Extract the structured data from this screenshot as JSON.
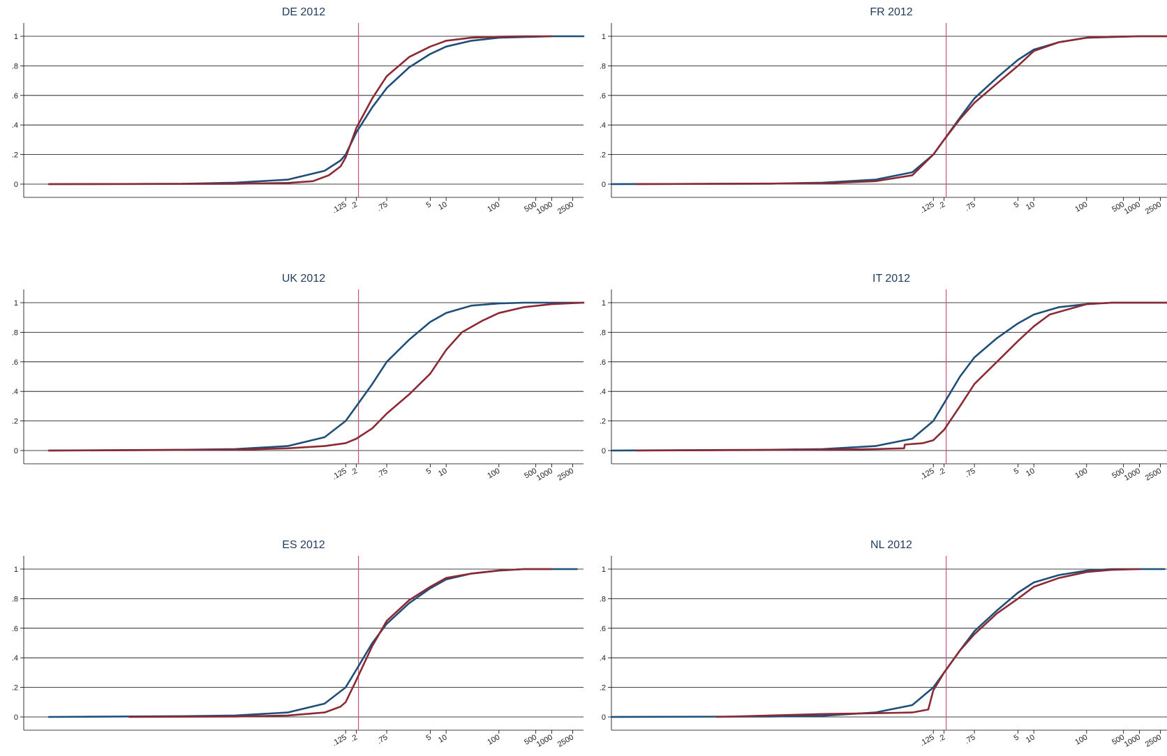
{
  "colors": {
    "series_a": "#1f4e79",
    "series_b": "#8b2a34",
    "vline": "#c8567a",
    "grid": "#000000"
  },
  "chart_data": [
    {
      "type": "line",
      "title": "DE 2012",
      "x_scale": "log",
      "x_ticks": [
        ".125",
        ".2",
        ".75",
        "5",
        "10",
        "100",
        "500",
        "1000",
        "2500"
      ],
      "y_ticks": [
        "0",
        ".2",
        ".4",
        ".6",
        ".8",
        "1"
      ],
      "ylim": [
        0,
        1
      ],
      "grid": true,
      "vline_x": 0.125,
      "series": [
        {
          "x": [
            3e-07,
            0.0001,
            0.001,
            0.01,
            0.05,
            0.1,
            0.125,
            0.2,
            0.4,
            0.75,
            2,
            5,
            10,
            30,
            100,
            300,
            1000,
            4000
          ],
          "y": [
            0,
            0.002,
            0.01,
            0.03,
            0.09,
            0.16,
            0.2,
            0.35,
            0.52,
            0.65,
            0.79,
            0.88,
            0.93,
            0.97,
            0.99,
            0.995,
            1,
            1
          ]
        },
        {
          "x": [
            3e-07,
            0.001,
            0.01,
            0.03,
            0.06,
            0.1,
            0.125,
            0.2,
            0.4,
            0.75,
            2,
            5,
            10,
            30,
            100,
            300,
            1000
          ],
          "y": [
            0,
            0.002,
            0.008,
            0.02,
            0.06,
            0.12,
            0.18,
            0.38,
            0.58,
            0.73,
            0.86,
            0.93,
            0.97,
            0.99,
            0.997,
            1,
            1
          ]
        }
      ]
    },
    {
      "type": "line",
      "title": "FR 2012",
      "x_scale": "log",
      "x_ticks": [
        ".125",
        ".2",
        ".75",
        "5",
        "10",
        "100",
        "500",
        "1000",
        "2500"
      ],
      "y_ticks": [
        "0",
        ".2",
        ".4",
        ".6",
        ".8",
        "1"
      ],
      "ylim": [
        0,
        1
      ],
      "grid": true,
      "vline_x": 0.125,
      "series": [
        {
          "x": [
            1e-07,
            0.0001,
            0.001,
            0.01,
            0.05,
            0.125,
            0.2,
            0.4,
            0.75,
            2,
            5,
            10,
            30,
            100,
            300,
            1000,
            4000
          ],
          "y": [
            0,
            0.003,
            0.01,
            0.03,
            0.08,
            0.2,
            0.3,
            0.45,
            0.58,
            0.72,
            0.84,
            0.91,
            0.96,
            0.99,
            0.995,
            1,
            1
          ]
        },
        {
          "x": [
            3e-07,
            0.001,
            0.01,
            0.05,
            0.125,
            0.2,
            0.4,
            0.75,
            2,
            5,
            10,
            30,
            100,
            300,
            1000,
            4000
          ],
          "y": [
            0,
            0.005,
            0.02,
            0.06,
            0.2,
            0.3,
            0.44,
            0.55,
            0.68,
            0.8,
            0.9,
            0.96,
            0.99,
            0.997,
            1,
            1
          ]
        }
      ]
    },
    {
      "type": "line",
      "title": "UK 2012",
      "x_scale": "log",
      "x_ticks": [
        ".125",
        ".2",
        ".75",
        "5",
        "10",
        "100",
        "500",
        "1000",
        "2500"
      ],
      "y_ticks": [
        "0",
        ".2",
        ".4",
        ".6",
        ".8",
        "1"
      ],
      "ylim": [
        0,
        1
      ],
      "grid": true,
      "vline_x": 0.125,
      "series": [
        {
          "x": [
            3e-07,
            0.0001,
            0.001,
            0.01,
            0.05,
            0.125,
            0.2,
            0.4,
            0.75,
            2,
            5,
            10,
            30,
            100,
            300,
            1000,
            4000
          ],
          "y": [
            0,
            0.005,
            0.01,
            0.03,
            0.09,
            0.2,
            0.3,
            0.45,
            0.6,
            0.75,
            0.87,
            0.93,
            0.98,
            0.995,
            1,
            1,
            1
          ]
        },
        {
          "x": [
            3e-07,
            0.001,
            0.01,
            0.05,
            0.125,
            0.2,
            0.4,
            0.75,
            2,
            5,
            10,
            20,
            50,
            100,
            300,
            1000,
            4000
          ],
          "y": [
            0,
            0.005,
            0.015,
            0.03,
            0.05,
            0.08,
            0.15,
            0.25,
            0.38,
            0.52,
            0.68,
            0.8,
            0.88,
            0.93,
            0.97,
            0.99,
            1
          ]
        }
      ]
    },
    {
      "type": "line",
      "title": "IT 2012",
      "x_scale": "log",
      "x_ticks": [
        ".125",
        ".2",
        ".75",
        "5",
        "10",
        "100",
        "500",
        "1000",
        "2500"
      ],
      "y_ticks": [
        "0",
        ".2",
        ".4",
        ".6",
        ".8",
        "1"
      ],
      "ylim": [
        0,
        1
      ],
      "grid": true,
      "vline_x": 0.125,
      "series": [
        {
          "x": [
            1e-07,
            0.0001,
            0.001,
            0.01,
            0.05,
            0.125,
            0.2,
            0.4,
            0.75,
            2,
            5,
            10,
            30,
            100,
            300,
            1000,
            4000
          ],
          "y": [
            0,
            0.005,
            0.01,
            0.03,
            0.08,
            0.2,
            0.32,
            0.5,
            0.63,
            0.76,
            0.86,
            0.92,
            0.97,
            0.99,
            1,
            1,
            1
          ]
        },
        {
          "x": [
            3e-07,
            0.001,
            0.01,
            0.035,
            0.036,
            0.08,
            0.125,
            0.2,
            0.4,
            0.75,
            2,
            5,
            10,
            20,
            50,
            100,
            300,
            1000,
            4000
          ],
          "y": [
            0,
            0.005,
            0.01,
            0.015,
            0.04,
            0.05,
            0.07,
            0.14,
            0.3,
            0.45,
            0.6,
            0.74,
            0.84,
            0.92,
            0.96,
            0.99,
            1,
            1,
            1
          ]
        }
      ]
    },
    {
      "type": "line",
      "title": "ES 2012",
      "x_scale": "log",
      "x_ticks": [
        ".125",
        ".2",
        ".75",
        "5",
        "10",
        "100",
        "500",
        "1000",
        "2500"
      ],
      "y_ticks": [
        "0",
        ".2",
        ".4",
        ".6",
        ".8",
        "1"
      ],
      "ylim": [
        0,
        1
      ],
      "grid": true,
      "vline_x": 0.125,
      "series": [
        {
          "x": [
            3e-07,
            0.0001,
            0.001,
            0.01,
            0.05,
            0.125,
            0.2,
            0.4,
            0.75,
            2,
            5,
            10,
            30,
            100,
            300,
            1000,
            3000
          ],
          "y": [
            0,
            0.005,
            0.01,
            0.03,
            0.09,
            0.2,
            0.32,
            0.5,
            0.63,
            0.77,
            0.87,
            0.93,
            0.97,
            0.99,
            1,
            1,
            1
          ]
        },
        {
          "x": [
            1e-05,
            0.001,
            0.01,
            0.05,
            0.1,
            0.125,
            0.2,
            0.4,
            0.75,
            2,
            5,
            10,
            30,
            100,
            300,
            1000
          ],
          "y": [
            0,
            0.003,
            0.01,
            0.03,
            0.07,
            0.1,
            0.25,
            0.48,
            0.65,
            0.79,
            0.88,
            0.94,
            0.97,
            0.99,
            1,
            1
          ]
        }
      ]
    },
    {
      "type": "line",
      "title": "NL 2012",
      "x_scale": "log",
      "x_ticks": [
        ".125",
        ".2",
        ".75",
        "5",
        "10",
        "100",
        "500",
        "1000",
        "2500"
      ],
      "y_ticks": [
        "0",
        ".2",
        ".4",
        ".6",
        ".8",
        "1"
      ],
      "ylim": [
        0,
        1
      ],
      "grid": true,
      "vline_x": 0.125,
      "series": [
        {
          "x": [
            1e-07,
            0.0001,
            0.001,
            0.01,
            0.05,
            0.125,
            0.2,
            0.4,
            0.75,
            2,
            5,
            10,
            30,
            100,
            300,
            1000,
            3000
          ],
          "y": [
            0,
            0.003,
            0.008,
            0.03,
            0.08,
            0.2,
            0.3,
            0.45,
            0.58,
            0.72,
            0.84,
            0.91,
            0.96,
            0.99,
            1,
            1,
            1
          ]
        },
        {
          "x": [
            1e-05,
            0.0001,
            0.001,
            0.01,
            0.05,
            0.1,
            0.125,
            0.2,
            0.4,
            0.75,
            2,
            5,
            10,
            30,
            100,
            300,
            1000
          ],
          "y": [
            0,
            0.01,
            0.02,
            0.025,
            0.03,
            0.05,
            0.18,
            0.3,
            0.45,
            0.56,
            0.7,
            0.8,
            0.88,
            0.94,
            0.98,
            0.995,
            1
          ]
        }
      ]
    }
  ]
}
